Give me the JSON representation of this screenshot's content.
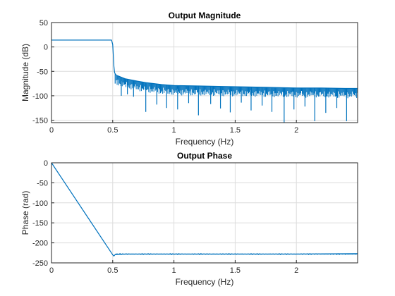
{
  "chart_data": [
    {
      "type": "line",
      "title": "Output Magnitude",
      "xlabel": "Frequency (Hz)",
      "ylabel": "Magnitude (dB)",
      "xlim": [
        0,
        2.5
      ],
      "ylim": [
        -155,
        50
      ],
      "xticks": [
        0,
        0.5,
        1,
        1.5,
        2
      ],
      "xtick_labels": [
        "0",
        "0.5",
        "1",
        "1.5",
        "2"
      ],
      "yticks": [
        50,
        0,
        -50,
        -100,
        -150
      ],
      "ytick_labels": [
        "50",
        "0",
        "-50",
        "-100",
        "-150"
      ],
      "grid": true,
      "color": "#0072BD",
      "series": [
        {
          "x": [
            0,
            0.49,
            0.5,
            0.51,
            0.515,
            0.52,
            0.53,
            0.55,
            0.6,
            0.7,
            0.77,
            0.8,
            0.9,
            1.0,
            1.2,
            1.4,
            1.6,
            1.8,
            1.9,
            2.0,
            2.2,
            2.4,
            2.5
          ],
          "y": [
            14,
            14,
            5,
            -40,
            -52,
            -55,
            -58,
            -60,
            -65,
            -70,
            -73,
            -74,
            -77,
            -79,
            -80,
            -81,
            -82,
            -83,
            -83.5,
            -84,
            -84,
            -85,
            -85
          ]
        }
      ],
      "dips": {
        "x": [
          0.52,
          0.57,
          0.62,
          0.67,
          0.77,
          0.86,
          0.94,
          1.03,
          1.12,
          1.2,
          1.3,
          1.38,
          1.46,
          1.55,
          1.63,
          1.72,
          1.8,
          1.9,
          1.98,
          2.07,
          2.15,
          2.24,
          2.33,
          2.41
        ],
        "y": [
          -75,
          -100,
          -97,
          -102,
          -133,
          -118,
          -125,
          -128,
          -115,
          -140,
          -117,
          -126,
          -134,
          -114,
          -130,
          -120,
          -133,
          -155,
          -128,
          -122,
          -152,
          -135,
          -125,
          -152
        ]
      }
    },
    {
      "type": "line",
      "title": "Output Phase",
      "xlabel": "Frequency (Hz)",
      "ylabel": "Phase (rad)",
      "xlim": [
        0,
        2.5
      ],
      "ylim": [
        -250,
        0
      ],
      "xticks": [
        0,
        0.5,
        1,
        1.5,
        2
      ],
      "xtick_labels": [
        "0",
        "0.5",
        "1",
        "1.5",
        "2"
      ],
      "yticks": [
        0,
        -50,
        -100,
        -150,
        -200,
        -250
      ],
      "ytick_labels": [
        "0",
        "-50",
        "-100",
        "-150",
        "-200",
        "-250"
      ],
      "grid": true,
      "color": "#0072BD",
      "series": [
        {
          "x": [
            0,
            0.5,
            0.51,
            0.52,
            0.6,
            0.8,
            1.0,
            1.5,
            2.0,
            2.5
          ],
          "y": [
            0,
            -230,
            -233,
            -229,
            -228,
            -228,
            -228,
            -228,
            -228,
            -227
          ]
        }
      ]
    }
  ]
}
